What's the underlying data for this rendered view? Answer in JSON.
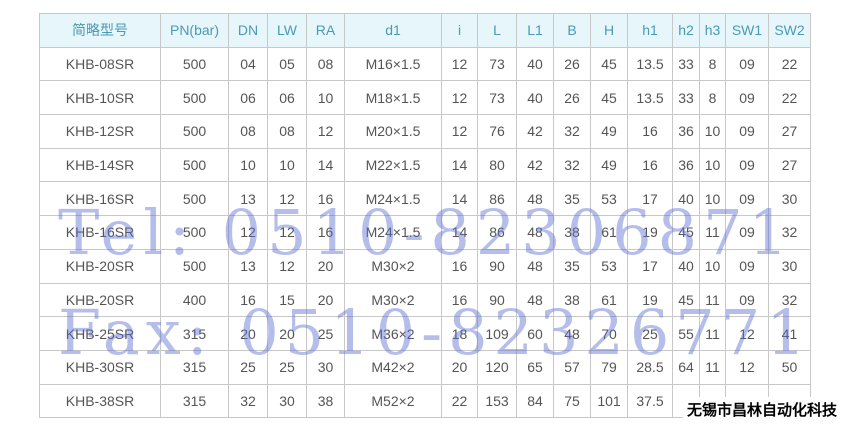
{
  "headers": [
    "简略型号",
    "PN(bar)",
    "DN",
    "LW",
    "RA",
    "d1",
    "i",
    "L",
    "L1",
    "B",
    "H",
    "h1",
    "h2",
    "h3",
    "SW1",
    "SW2"
  ],
  "rows": [
    [
      "KHB-08SR",
      "500",
      "04",
      "05",
      "08",
      "M16×1.5",
      "12",
      "73",
      "40",
      "26",
      "45",
      "13.5",
      "33",
      "8",
      "09",
      "22"
    ],
    [
      "KHB-10SR",
      "500",
      "06",
      "06",
      "10",
      "M18×1.5",
      "12",
      "73",
      "40",
      "26",
      "45",
      "13.5",
      "33",
      "8",
      "09",
      "22"
    ],
    [
      "KHB-12SR",
      "500",
      "08",
      "08",
      "12",
      "M20×1.5",
      "12",
      "76",
      "42",
      "32",
      "49",
      "16",
      "36",
      "10",
      "09",
      "27"
    ],
    [
      "KHB-14SR",
      "500",
      "10",
      "10",
      "14",
      "M22×1.5",
      "14",
      "80",
      "42",
      "32",
      "49",
      "16",
      "36",
      "10",
      "09",
      "27"
    ],
    [
      "KHB-16SR",
      "500",
      "13",
      "12",
      "16",
      "M24×1.5",
      "14",
      "86",
      "48",
      "35",
      "53",
      "17",
      "40",
      "10",
      "09",
      "30"
    ],
    [
      "KHB-16SR",
      "500",
      "12",
      "12",
      "16",
      "M24×1.5",
      "14",
      "86",
      "48",
      "38",
      "61",
      "19",
      "45",
      "11",
      "09",
      "32"
    ],
    [
      "KHB-20SR",
      "500",
      "13",
      "12",
      "20",
      "M30×2",
      "16",
      "90",
      "48",
      "35",
      "53",
      "17",
      "40",
      "10",
      "09",
      "30"
    ],
    [
      "KHB-20SR",
      "400",
      "16",
      "15",
      "20",
      "M30×2",
      "16",
      "90",
      "48",
      "38",
      "61",
      "19",
      "45",
      "11",
      "09",
      "32"
    ],
    [
      "KHB-25SR",
      "315",
      "20",
      "20",
      "25",
      "M36×2",
      "18",
      "109",
      "60",
      "48",
      "70",
      "25",
      "55",
      "11",
      "12",
      "41"
    ],
    [
      "KHB-30SR",
      "315",
      "25",
      "25",
      "30",
      "M42×2",
      "20",
      "120",
      "65",
      "57",
      "79",
      "28.5",
      "64",
      "11",
      "12",
      "50"
    ],
    [
      "KHB-38SR",
      "315",
      "32",
      "30",
      "38",
      "M52×2",
      "22",
      "153",
      "84",
      "75",
      "101",
      "37.5",
      "",
      "",
      "",
      ""
    ]
  ],
  "watermark": {
    "tel": "Tel: 0510-82306871",
    "fax": "Fax: 0510-82326771"
  },
  "company_label": "无锡市昌林自动化科技",
  "colors": {
    "header_bg": "#e6f6fa",
    "header_text": "#4a9ab5",
    "watermark": "#5a6ed2"
  }
}
